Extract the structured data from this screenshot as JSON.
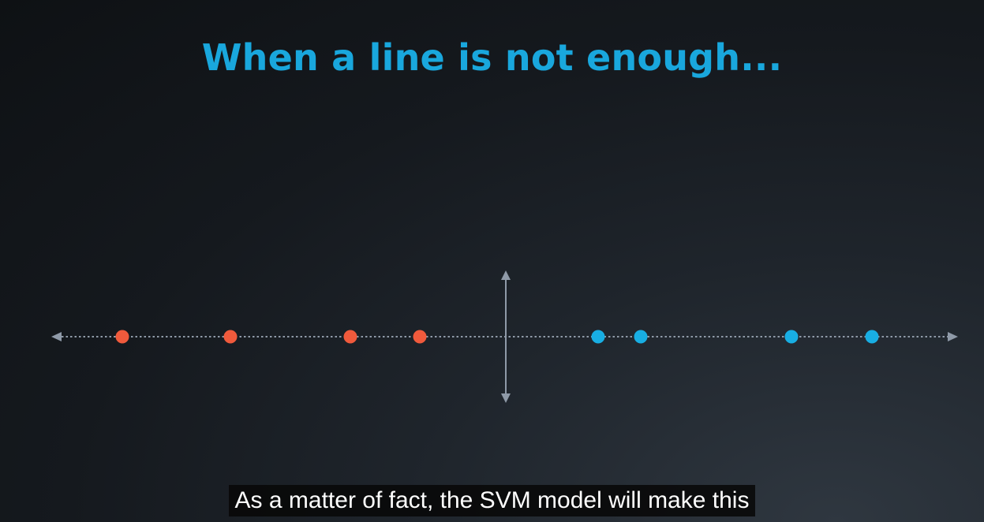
{
  "slide": {
    "title": "When a line is not enough..."
  },
  "diagram": {
    "axis_color": "#8f9aa8",
    "points": [
      {
        "class": "red"
      },
      {
        "class": "red"
      },
      {
        "class": "red"
      },
      {
        "class": "red"
      },
      {
        "class": "blue"
      },
      {
        "class": "blue"
      },
      {
        "class": "blue"
      },
      {
        "class": "blue"
      }
    ],
    "colors": {
      "red": "#f05a3c",
      "blue": "#18aee3"
    }
  },
  "subtitle": {
    "text": "As a matter of fact, the SVM model will make this"
  }
}
